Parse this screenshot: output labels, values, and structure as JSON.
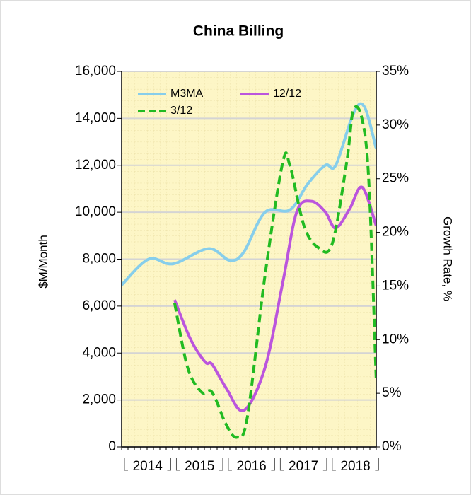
{
  "chart_data": {
    "type": "line",
    "title": "China Billing",
    "ylabel": "$M/Month",
    "y2label": "Growth Rate, %",
    "xlim": [
      2014.0,
      2018.9
    ],
    "xticks": [
      {
        "value": 2014.5,
        "label": "2014"
      },
      {
        "value": 2015.5,
        "label": "2015"
      },
      {
        "value": 2016.5,
        "label": "2016"
      },
      {
        "value": 2017.5,
        "label": "2017"
      },
      {
        "value": 2018.5,
        "label": "2018"
      }
    ],
    "ylim": [
      0,
      16000
    ],
    "yticks": [
      0,
      {
        "value": 2000,
        "label": "2,000"
      },
      {
        "value": 4000,
        "label": "4,000"
      },
      {
        "value": 6000,
        "label": "6,000"
      },
      {
        "value": 8000,
        "label": "8,000"
      },
      {
        "value": 10000,
        "label": "10,000"
      },
      {
        "value": 12000,
        "label": "12,000"
      },
      {
        "value": 14000,
        "label": "14,000"
      },
      {
        "value": 16000,
        "label": "16,000"
      }
    ],
    "y2lim": [
      0,
      35
    ],
    "y2ticks": [
      {
        "value": 0,
        "label": "0%"
      },
      {
        "value": 5,
        "label": "5%"
      },
      {
        "value": 10,
        "label": "10%"
      },
      {
        "value": 15,
        "label": "15%"
      },
      {
        "value": 20,
        "label": "20%"
      },
      {
        "value": 25,
        "label": "25%"
      },
      {
        "value": 30,
        "label": "30%"
      },
      {
        "value": 35,
        "label": "35%"
      }
    ],
    "grid": true,
    "legend": "top-left",
    "series": [
      {
        "name": "M3MA",
        "color": "#87ceeb",
        "dashed": false,
        "axis": "y",
        "x": [
          2014.0,
          2014.52,
          2014.99,
          2015.67,
          2016.08,
          2016.35,
          2016.76,
          2017.24,
          2017.58,
          2017.92,
          2018.12,
          2018.46,
          2018.67,
          2018.9
        ],
        "values": [
          6900,
          8000,
          7800,
          8450,
          7950,
          8300,
          10000,
          10100,
          11200,
          12000,
          12000,
          14200,
          14500,
          12700
        ]
      },
      {
        "name": "12/12",
        "color": "#bb55dd",
        "dashed": false,
        "axis": "y2",
        "x": [
          2015.02,
          2015.33,
          2015.61,
          2015.74,
          2016.01,
          2016.35,
          2016.76,
          2017.1,
          2017.37,
          2017.65,
          2017.92,
          2018.12,
          2018.39,
          2018.63,
          2018.9
        ],
        "values": [
          13.7,
          10,
          7.9,
          7.7,
          5.5,
          3.4,
          7.4,
          15.3,
          21.9,
          22.9,
          21.9,
          20.4,
          22.2,
          24.2,
          20.6
        ]
      },
      {
        "name": "3/12",
        "color": "#22bb22",
        "dashed": true,
        "axis": "y2",
        "x": [
          2015.02,
          2015.27,
          2015.54,
          2015.74,
          2016.01,
          2016.22,
          2016.42,
          2016.76,
          2017.1,
          2017.24,
          2017.51,
          2017.78,
          2018.05,
          2018.33,
          2018.46,
          2018.63,
          2018.76,
          2018.9
        ],
        "values": [
          13.4,
          7.4,
          5.1,
          5.1,
          2.1,
          0.9,
          2.8,
          16,
          26.5,
          26.2,
          20.6,
          18.6,
          18.9,
          26.5,
          31.4,
          30.5,
          24.5,
          6.1
        ]
      }
    ]
  }
}
